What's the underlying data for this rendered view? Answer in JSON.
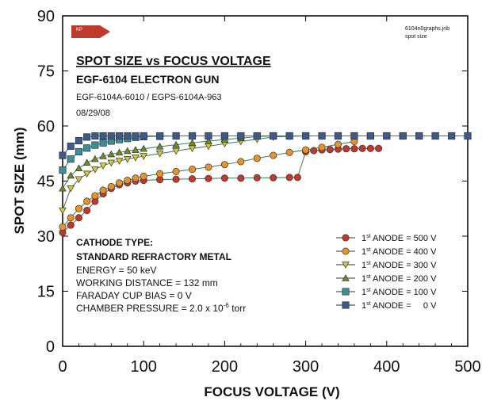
{
  "chart_data": {
    "type": "line",
    "title": "SPOT SIZE vs FOCUS VOLTAGE",
    "subtitle": "EGF-6104 ELECTRON GUN",
    "part_numbers": "EGF-6104A-6010 / EGPS-6104A-963",
    "date": "08/29/08",
    "file_note_line1": "6104n0graphs.jnb",
    "file_note_line2": "spot size",
    "logo_text": "KP",
    "xlabel": "FOCUS VOLTAGE (V)",
    "ylabel": "SPOT SIZE (mm)",
    "xlim": [
      0,
      500
    ],
    "ylim": [
      0,
      90
    ],
    "x_ticks": [
      "0",
      "100",
      "200",
      "300",
      "400",
      "500"
    ],
    "y_ticks": [
      "0",
      "15",
      "30",
      "45",
      "60",
      "75",
      "90"
    ],
    "grid": false,
    "legend_position": "lower-right",
    "conditions": {
      "line1": "CATHODE TYPE:",
      "line2": "STANDARD REFRACTORY METAL",
      "line3": "ENERGY = 50 keV",
      "line4": "WORKING DISTANCE = 132 mm",
      "line5": "FARADAY CUP BIAS = 0 V",
      "line6_pre": "CHAMBER PRESSURE = 2.0 x 10",
      "line6_sup": "-6",
      "line6_post": " torr"
    },
    "legend_prefix": "1",
    "legend_sup": "st",
    "series": [
      {
        "name": " ANODE = 500 V",
        "color": "#c0392b",
        "marker": "circle",
        "x": [
          0,
          10,
          20,
          30,
          40,
          50,
          60,
          70,
          80,
          90,
          100,
          120,
          140,
          160,
          180,
          200,
          220,
          240,
          260,
          280,
          290,
          300,
          310,
          320,
          330,
          340,
          350,
          360,
          370,
          380,
          390
        ],
        "y": [
          31,
          33,
          35,
          37,
          39.5,
          41.5,
          43,
          44,
          44.5,
          45,
          45.2,
          45.4,
          45.5,
          45.6,
          45.7,
          45.8,
          45.8,
          45.9,
          45.9,
          46,
          46,
          53,
          53.3,
          53.5,
          53.6,
          53.7,
          53.8,
          53.8,
          53.9,
          53.9,
          53.9
        ]
      },
      {
        "name": " ANODE = 400 V",
        "color": "#e8922a",
        "marker": "circle",
        "x": [
          0,
          10,
          20,
          30,
          40,
          50,
          60,
          70,
          80,
          90,
          100,
          120,
          140,
          160,
          180,
          200,
          220,
          240,
          260,
          280,
          300,
          320,
          340,
          360
        ],
        "y": [
          32.5,
          35,
          37.5,
          39.5,
          41,
          42.5,
          43.5,
          44.5,
          45.2,
          45.8,
          46.3,
          47,
          47.6,
          48.2,
          48.8,
          49.5,
          50.3,
          51.2,
          52,
          52.8,
          53.5,
          54.2,
          55,
          55.8
        ]
      },
      {
        "name": " ANODE = 300 V",
        "color": "#d8c437",
        "marker": "triangle-down",
        "x": [
          0,
          10,
          20,
          30,
          40,
          50,
          60,
          70,
          80,
          90,
          100,
          120,
          140,
          160,
          180,
          200,
          220,
          240,
          260,
          280,
          300,
          320,
          340,
          360,
          380,
          400,
          420,
          440,
          460,
          480,
          500
        ],
        "y": [
          37,
          43,
          45.5,
          47,
          48.2,
          49.2,
          50,
          50.5,
          51,
          51.4,
          51.8,
          52.5,
          53.2,
          53.9,
          54.5,
          55.2,
          55.8,
          56.4,
          57,
          57.2,
          57.3,
          57.3,
          57.3,
          57.3,
          57.3,
          57.3,
          57.3,
          57.3,
          57.3,
          57.3,
          57.3
        ]
      },
      {
        "name": " ANODE = 200 V",
        "color": "#6b8e23",
        "marker": "triangle-up",
        "x": [
          0,
          10,
          20,
          30,
          40,
          50,
          60,
          70,
          80,
          90,
          100,
          120,
          140,
          160,
          180,
          200,
          220,
          240,
          260,
          280,
          300,
          320,
          340,
          360,
          380,
          400,
          420,
          440,
          460,
          480,
          500
        ],
        "y": [
          43,
          46.5,
          48.5,
          50,
          51,
          51.8,
          52.3,
          52.8,
          53.2,
          53.5,
          53.8,
          54.4,
          54.9,
          55.4,
          55.9,
          56.3,
          56.7,
          57.1,
          57.3,
          57.3,
          57.3,
          57.3,
          57.3,
          57.3,
          57.3,
          57.3,
          57.3,
          57.3,
          57.3,
          57.3,
          57.3
        ]
      },
      {
        "name": " ANODE = 100 V",
        "color": "#3a8f9a",
        "marker": "square",
        "x": [
          0,
          10,
          20,
          30,
          40,
          50,
          60,
          70,
          80,
          90,
          100,
          120,
          140,
          160,
          180,
          200,
          220,
          240,
          260,
          280,
          300,
          320,
          340,
          360,
          380,
          400,
          420,
          440,
          460,
          480,
          500
        ],
        "y": [
          48,
          51,
          53,
          54,
          54.8,
          55.4,
          55.9,
          56.3,
          56.6,
          56.9,
          57.1,
          57.2,
          57.3,
          57.3,
          57.3,
          57.3,
          57.3,
          57.3,
          57.3,
          57.3,
          57.3,
          57.3,
          57.3,
          57.3,
          57.3,
          57.3,
          57.3,
          57.3,
          57.3,
          57.3,
          57.3
        ]
      },
      {
        "name": " ANODE =     0 V",
        "color": "#3d5a8a",
        "marker": "square",
        "x": [
          0,
          10,
          20,
          30,
          40,
          50,
          60,
          70,
          80,
          90,
          100,
          120,
          140,
          160,
          180,
          200,
          220,
          240,
          260,
          280,
          300,
          320,
          340,
          360,
          380,
          400,
          420,
          440,
          460,
          480,
          500
        ],
        "y": [
          52,
          54.5,
          56,
          57,
          57.3,
          57.3,
          57.3,
          57.3,
          57.3,
          57.3,
          57.3,
          57.3,
          57.3,
          57.3,
          57.3,
          57.3,
          57.3,
          57.3,
          57.3,
          57.3,
          57.3,
          57.3,
          57.3,
          57.3,
          57.3,
          57.3,
          57.3,
          57.3,
          57.3,
          57.3,
          57.3
        ]
      }
    ]
  }
}
